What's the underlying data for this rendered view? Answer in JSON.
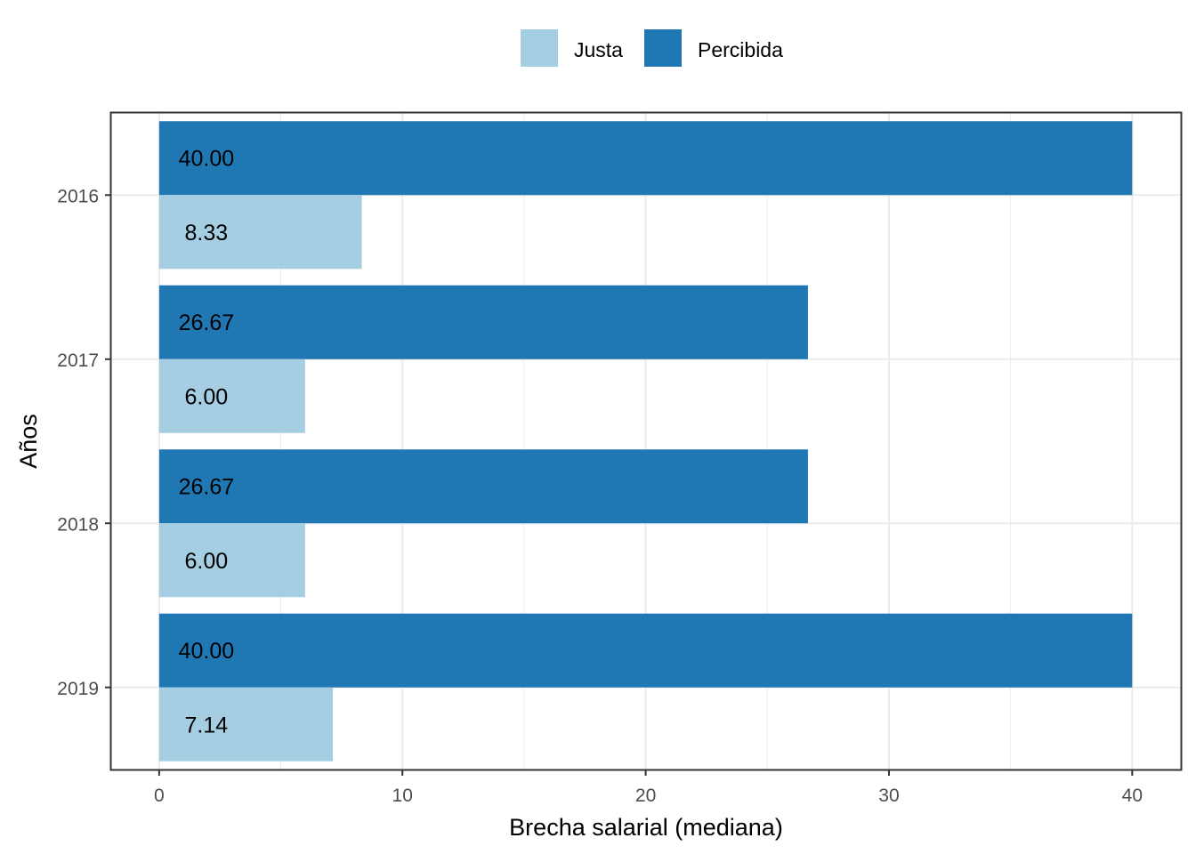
{
  "chart_data": {
    "type": "bar",
    "orientation": "horizontal",
    "categories": [
      "2016",
      "2017",
      "2018",
      "2019"
    ],
    "series": [
      {
        "name": "Justa",
        "color": "#a6cee3",
        "values": [
          8.33,
          6.0,
          6.0,
          7.14
        ],
        "labels": [
          "8.33",
          "6.00",
          "6.00",
          "7.14"
        ]
      },
      {
        "name": "Percibida",
        "color": "#1f78b4",
        "values": [
          40.0,
          26.67,
          26.67,
          40.0
        ],
        "labels": [
          "40.00",
          "26.67",
          "26.67",
          "40.00"
        ]
      }
    ],
    "xlabel": "Brecha salarial (mediana)",
    "ylabel": "Años",
    "xlim": [
      -1.97,
      42
    ],
    "x_ticks": [
      "0",
      "10",
      "20",
      "30",
      "40"
    ],
    "x_tick_values": [
      0,
      10,
      20,
      30,
      40
    ],
    "legend_position": "top",
    "grid": true
  }
}
